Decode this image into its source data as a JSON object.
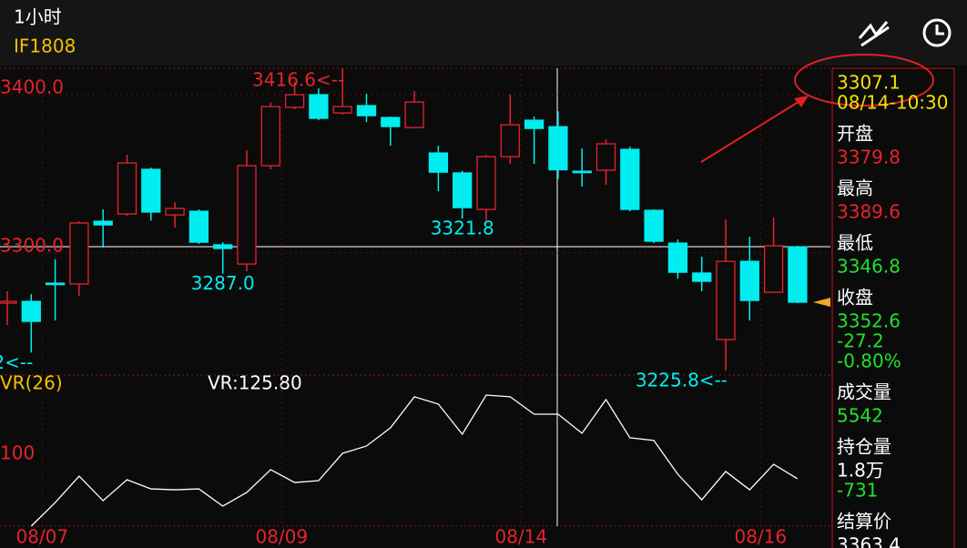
{
  "header": {
    "title": "1小时",
    "symbol": "IF1808"
  },
  "chart_data": [
    {
      "type": "candlestick",
      "up_color": "#e8232c",
      "down_color": "#00eef0",
      "categories": [
        null,
        "08/07",
        null,
        null,
        null,
        null,
        null,
        null,
        null,
        null,
        null,
        "08/09",
        null,
        null,
        null,
        null,
        null,
        null,
        null,
        null,
        null,
        "08/14",
        null,
        null,
        null,
        null,
        null,
        null,
        null,
        null,
        null,
        "08/16",
        null,
        null
      ],
      "open": [
        3268.4,
        3269.5,
        3281.0,
        3280.5,
        3320.1,
        3324.7,
        3352.9,
        3324.1,
        3326.4,
        3305.2,
        3293.1,
        3355.2,
        3392.0,
        3400.0,
        3388.5,
        3393.1,
        3385.6,
        3379.3,
        3363.2,
        3350.6,
        3327.6,
        3360.9,
        3383.9,
        3379.8,
        3351.7,
        3352.3,
        3365.5,
        3327.0,
        3306.3,
        3287.4,
        3245.4,
        3294.8,
        3275.3,
        3304.0
      ],
      "close": [
        3269.5,
        3256.9,
        3280.6,
        3319.0,
        3317.8,
        3356.9,
        3325.9,
        3328.2,
        3306.9,
        3302.9,
        3355.2,
        3392.5,
        3400.0,
        3385.1,
        3392.5,
        3386.8,
        3379.9,
        3395.4,
        3351.1,
        3328.7,
        3360.9,
        3381.0,
        3378.7,
        3352.6,
        3351.2,
        3369.0,
        3327.6,
        3307.5,
        3287.9,
        3282.2,
        3294.8,
        3270.1,
        3304.6,
        3269.0
      ],
      "high": [
        3275.9,
        3274.1,
        3296.0,
        3320.1,
        3327.6,
        3362.1,
        3354.0,
        3332.2,
        3327.6,
        3306.9,
        3364.9,
        3395.0,
        3408.0,
        3404.0,
        3416.6,
        3400.6,
        3386.2,
        3402.3,
        3367.8,
        3352.0,
        3362.0,
        3400.0,
        3386.2,
        3389.6,
        3366.1,
        3371.8,
        3367.2,
        3327.6,
        3308.6,
        3297.7,
        3321.3,
        3310.3,
        3322.4,
        3304.6
      ],
      "low": [
        3254.6,
        3237.2,
        3257.5,
        3273.0,
        3303.4,
        3323.6,
        3320.5,
        3316.1,
        3305.7,
        3287.0,
        3288.5,
        3352.9,
        3390.8,
        3383.9,
        3387.4,
        3382.8,
        3367.8,
        3379.0,
        3339.1,
        3321.8,
        3320.7,
        3356.3,
        3356.3,
        3346.8,
        3342.0,
        3343.1,
        3326.4,
        3306.3,
        3283.9,
        3275.9,
        3225.8,
        3257.5,
        3274.7,
        3268.4
      ],
      "ylim": [
        3223,
        3416.7
      ],
      "yticks": [
        {
          "value": 3400,
          "label": "3400.0"
        },
        {
          "value": 3300,
          "label": "3300.0"
        }
      ],
      "annotations": [
        {
          "index": 1,
          "text": "2<--"
        },
        {
          "index": 9,
          "text": "3287.0"
        },
        {
          "index": 14,
          "text": "3416.6<--"
        },
        {
          "index": 19,
          "text": "3321.8"
        },
        {
          "index": 30,
          "text": "3225.8<--"
        }
      ]
    },
    {
      "type": "line",
      "title": "VR(26)",
      "readout": "VR:125.80",
      "color": "#ffffff",
      "values": [
        null,
        53.7,
        68.9,
        85.9,
        70.1,
        83.6,
        77.7,
        77.1,
        77.7,
        66.6,
        75.4,
        90.1,
        81.8,
        83.0,
        100.6,
        105.3,
        117.0,
        137.0,
        132.3,
        112.9,
        138.1,
        137.0,
        125.8,
        125.8,
        113.5,
        135.2,
        110.6,
        108.9,
        87.1,
        70.7,
        88.9,
        77.1,
        93.5,
        84.2
      ],
      "ylim": [
        53.7,
        151
      ],
      "yticks": [
        100
      ]
    }
  ],
  "panel": {
    "price": "3307.1",
    "time": "08/14-10:30",
    "rows": [
      {
        "label": "开盘",
        "values": [
          {
            "text": "3379.8",
            "color": "#e8232c"
          }
        ]
      },
      {
        "label": "最高",
        "values": [
          {
            "text": "3389.6",
            "color": "#e8232c"
          }
        ]
      },
      {
        "label": "最低",
        "values": [
          {
            "text": "3346.8",
            "color": "#22e02a"
          }
        ]
      },
      {
        "label": "收盘",
        "values": [
          {
            "text": "3352.6",
            "color": "#22e02a"
          },
          {
            "text": "-27.2",
            "color": "#22e02a"
          },
          {
            "text": "-0.80%",
            "color": "#22e02a"
          }
        ]
      },
      {
        "label": "成交量",
        "values": [
          {
            "text": "5542",
            "color": "#22e02a"
          }
        ]
      },
      {
        "label": "持仓量",
        "values": [
          {
            "text": "1.8万",
            "color": "#ffffff"
          },
          {
            "text": "-731",
            "color": "#22e02a"
          }
        ]
      },
      {
        "label": "结算价",
        "values": [
          {
            "text": "3363.4",
            "color": "#ffffff"
          }
        ]
      }
    ]
  }
}
